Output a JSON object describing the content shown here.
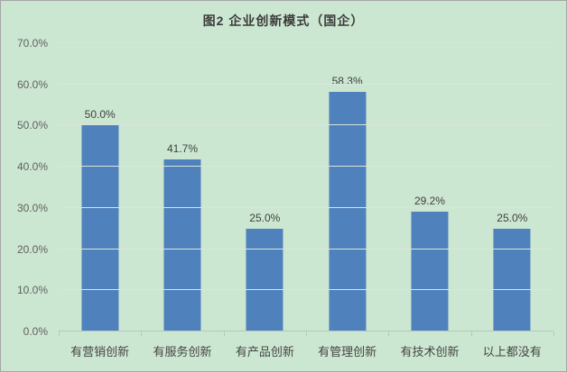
{
  "chart_data": {
    "type": "bar",
    "title": "图2 企业创新模式（国企）",
    "categories": [
      "有营销创新",
      "有服务创新",
      "有产品创新",
      "有管理创新",
      "有技术创新",
      "以上都没有"
    ],
    "values": [
      50.0,
      41.7,
      25.0,
      58.3,
      29.2,
      25.0
    ],
    "value_labels": [
      "50.0%",
      "41.7%",
      "25.0%",
      "58.3%",
      "29.2%",
      "25.0%"
    ],
    "y_ticks": [
      "0.0%",
      "10.0%",
      "20.0%",
      "30.0%",
      "40.0%",
      "50.0%",
      "60.0%",
      "70.0%"
    ],
    "ylim": [
      0,
      70
    ],
    "xlabel": "",
    "ylabel": "",
    "legend": "none",
    "grid": true,
    "colors": {
      "bar": "#4f81bd",
      "background": "#cce7d1",
      "gridline": "#d9e5db",
      "axis_line": "#b7c8ba",
      "title_text": "#3b3b3b",
      "tick_text": "#606060",
      "value_text": "#404040"
    }
  }
}
